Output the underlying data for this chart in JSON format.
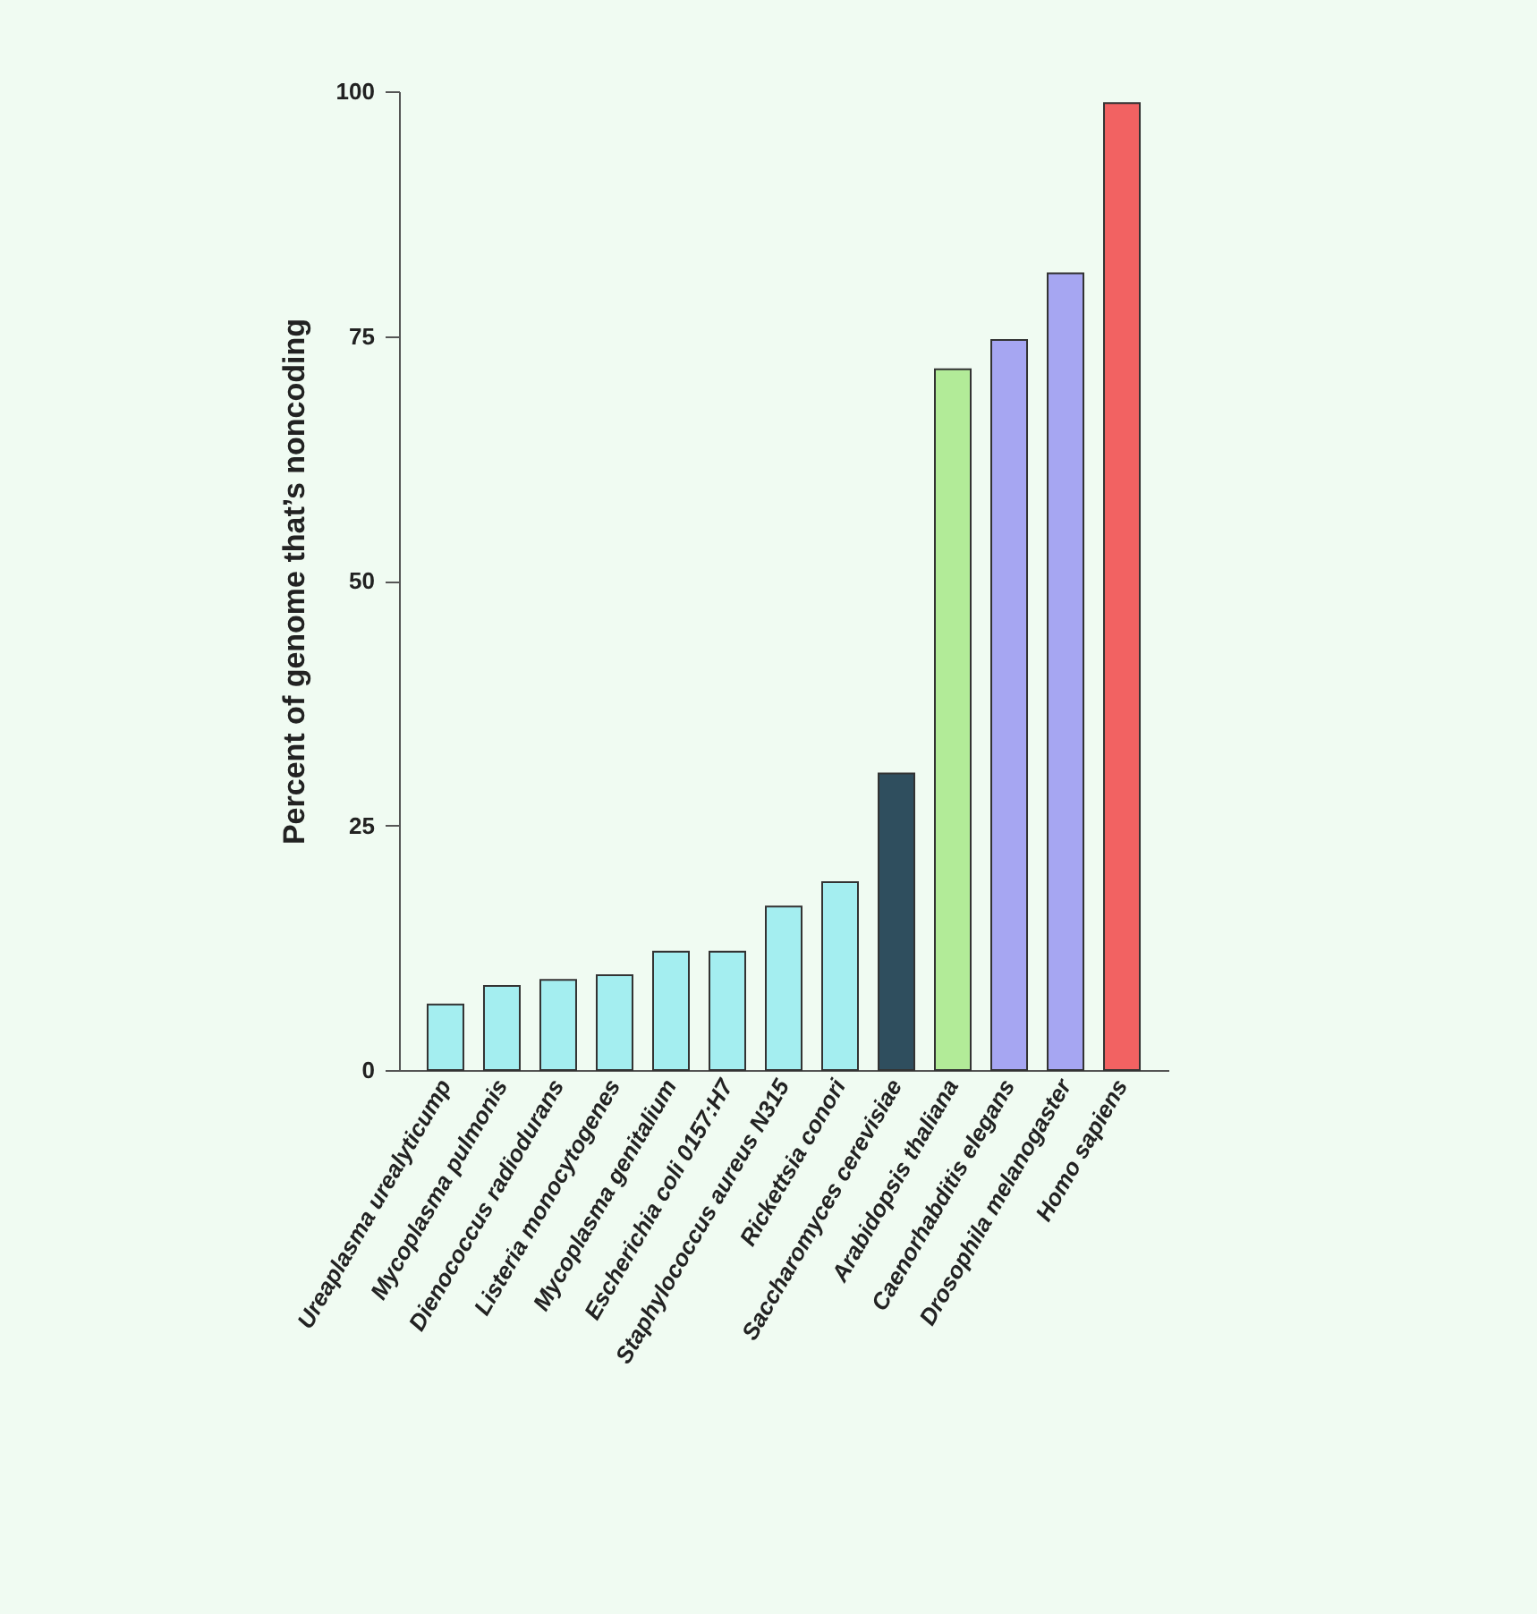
{
  "chart_data": {
    "type": "bar",
    "ylabel": "Percent of genome that’s noncoding",
    "categories": [
      "Ureaplasma urealyticump",
      "Mycoplasma pulmonis",
      "Dienococcus radiodurans",
      "Listeria monocytogenes",
      "Mycoplasma genitalium",
      "Escherichia coli 0157:H7",
      "Staphylococcus aureus N315",
      "Rickettsia conori",
      "Saccharomyces cerevisiae",
      "Arabidopsis thaliana",
      "Caenorhabditis elegans",
      "Drosophila melanogaster",
      "Homo sapiens"
    ],
    "values": [
      6.7,
      8.6,
      9.2,
      9.7,
      12.1,
      12.1,
      16.7,
      19.2,
      30.3,
      71.6,
      74.6,
      81.4,
      98.8
    ],
    "colors": [
      "#a4eef0",
      "#a4eef0",
      "#a4eef0",
      "#a4eef0",
      "#a4eef0",
      "#a4eef0",
      "#a4eef0",
      "#a4eef0",
      "#2f4e5e",
      "#b2eb98",
      "#a6a6f2",
      "#a6a6f2",
      "#f26262"
    ],
    "ylim": [
      0,
      100
    ],
    "yticks": [
      0,
      25,
      50,
      75,
      100
    ]
  }
}
